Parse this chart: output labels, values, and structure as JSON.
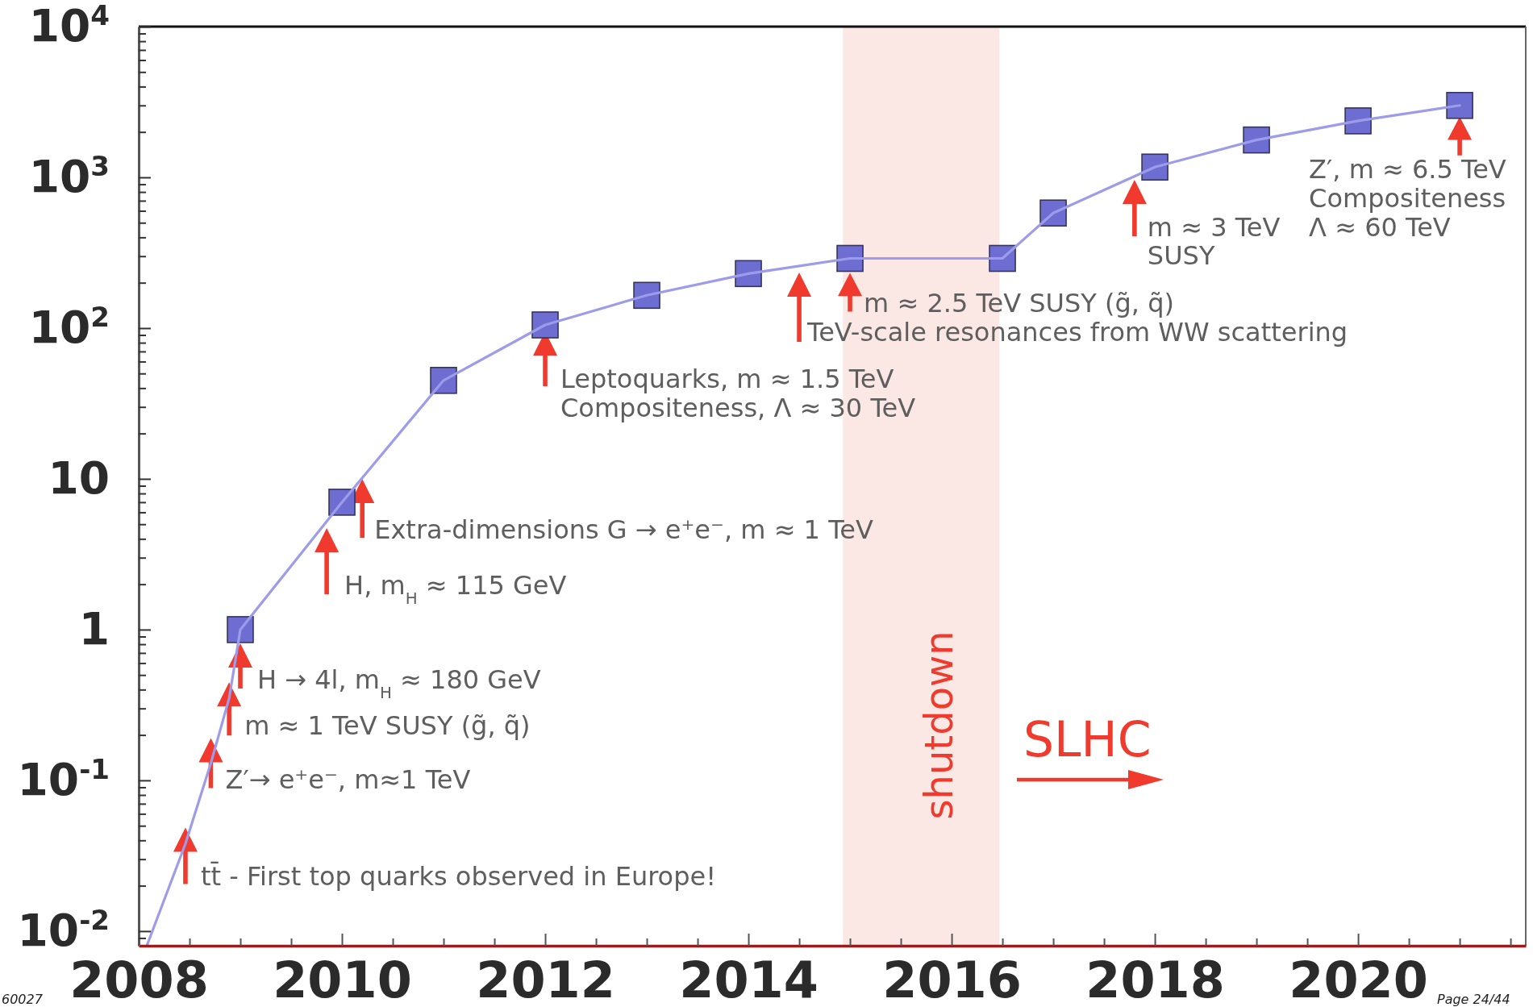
{
  "chart_data": {
    "type": "line",
    "log": true,
    "xlim": [
      2008,
      2021.65
    ],
    "xticks": [
      2008,
      {
        "value": 2008.5,
        "label": null
      },
      {
        "value": 2009,
        "label": null
      },
      {
        "value": 2009.5,
        "label": null
      },
      2010,
      {
        "value": 2010.5,
        "label": null
      },
      {
        "value": 2011,
        "label": null
      },
      {
        "value": 2011.5,
        "label": null
      },
      2012,
      {
        "value": 2012.5,
        "label": null
      },
      {
        "value": 2013,
        "label": null
      },
      {
        "value": 2013.5,
        "label": null
      },
      2014,
      {
        "value": 2014.5,
        "label": null
      },
      {
        "value": 2015,
        "label": null
      },
      {
        "value": 2015.5,
        "label": null
      },
      2016,
      {
        "value": 2016.5,
        "label": null
      },
      {
        "value": 2017,
        "label": null
      },
      {
        "value": 2017.5,
        "label": null
      },
      2018,
      {
        "value": 2018.5,
        "label": null
      },
      {
        "value": 2019,
        "label": null
      },
      {
        "value": 2019.5,
        "label": null
      },
      2020,
      {
        "value": 2020.5,
        "label": null
      },
      {
        "value": 2021,
        "label": null
      },
      {
        "value": 2021.5,
        "label": null
      }
    ],
    "ylim": [
      0.008,
      10000
    ],
    "yticks": [
      {
        "value": 0.009,
        "label": null
      },
      {
        "value": 0.01,
        "label": "10$^{-2}$"
      },
      {
        "value": 0.02,
        "label": null
      },
      {
        "value": 0.03,
        "label": null
      },
      {
        "value": 0.04,
        "label": null
      },
      {
        "value": 0.05,
        "label": null
      },
      {
        "value": 0.06,
        "label": null
      },
      {
        "value": 0.07,
        "label": null
      },
      {
        "value": 0.08,
        "label": null
      },
      {
        "value": 0.09,
        "label": null
      },
      {
        "value": 0.1,
        "label": "10$^{-1}$"
      },
      {
        "value": 0.2,
        "label": null
      },
      {
        "value": 0.3,
        "label": null
      },
      {
        "value": 0.4,
        "label": null
      },
      {
        "value": 0.5,
        "label": null
      },
      {
        "value": 0.6,
        "label": null
      },
      {
        "value": 0.7,
        "label": null
      },
      {
        "value": 0.8,
        "label": null
      },
      {
        "value": 0.9,
        "label": null
      },
      1,
      {
        "value": 2,
        "label": null
      },
      {
        "value": 3,
        "label": null
      },
      {
        "value": 4,
        "label": null
      },
      {
        "value": 5,
        "label": null
      },
      {
        "value": 6,
        "label": null
      },
      {
        "value": 7,
        "label": null
      },
      {
        "value": 8,
        "label": null
      },
      {
        "value": 9,
        "label": null
      },
      10,
      {
        "value": 20,
        "label": null
      },
      {
        "value": 30,
        "label": null
      },
      {
        "value": 40,
        "label": null
      },
      {
        "value": 50,
        "label": null
      },
      {
        "value": 60,
        "label": null
      },
      {
        "value": 70,
        "label": null
      },
      {
        "value": 80,
        "label": null
      },
      {
        "value": 90,
        "label": null
      },
      {
        "value": 100,
        "label": "10$^{2}$"
      },
      {
        "value": 200,
        "label": null
      },
      {
        "value": 300,
        "label": null
      },
      {
        "value": 400,
        "label": null
      },
      {
        "value": 500,
        "label": null
      },
      {
        "value": 600,
        "label": null
      },
      {
        "value": 700,
        "label": null
      },
      {
        "value": 800,
        "label": null
      },
      {
        "value": 900,
        "label": null
      },
      {
        "value": 1000,
        "label": "10$^{3}$"
      },
      {
        "value": 2000,
        "label": null
      },
      {
        "value": 3000,
        "label": null
      },
      {
        "value": 4000,
        "label": null
      },
      {
        "value": 5000,
        "label": null
      },
      {
        "value": 6000,
        "label": null
      },
      {
        "value": 7000,
        "label": null
      },
      {
        "value": 8000,
        "label": null
      },
      {
        "value": 9000,
        "label": null
      },
      {
        "value": 10000,
        "label": "10$^{4}$"
      }
    ],
    "series": [
      {
        "type": "scatter",
        "color": "#6d6dd2",
        "marker": "square",
        "x": [
          2009,
          2010,
          2011,
          2012,
          2013,
          2014,
          2015,
          2016.5,
          2017,
          2018,
          2019,
          2020,
          2021
        ],
        "values": [
          1,
          7,
          45,
          105,
          165,
          230,
          290,
          290,
          580,
          1170,
          1770,
          2370,
          3000
        ]
      },
      {
        "color": "#9c9cea",
        "marker": "none",
        "x": [
          2008.08,
          2008.46,
          2008.71,
          2008.89,
          2009,
          2010,
          2011,
          2012,
          2013,
          2014,
          2015,
          2016.5,
          2017,
          2018,
          2019,
          2020,
          2021
        ],
        "values": [
          0.008,
          0.038,
          0.13,
          0.35,
          1,
          7,
          45,
          105,
          165,
          230,
          290,
          290,
          580,
          1170,
          1770,
          2370,
          3000
        ]
      }
    ],
    "bands": [
      {
        "axis": "x",
        "from": 2014.93,
        "to": 2016.47,
        "label": "shutdown",
        "color": "#fbe8e4"
      }
    ],
    "annotations": [
      {
        "text": "tt̄ - First top quarks observed in Europe!",
        "x": 2008.46,
        "y": 0.038
      },
      {
        "text": "Z′→ e⁺e⁻, m≈1 TeV",
        "x": 2008.71,
        "y": 0.13
      },
      {
        "text": "m ≈ 1 TeV SUSY (g̃, q̃)",
        "x": 2008.89,
        "y": 0.35
      },
      {
        "text": "H → 4l, m$_{H}$ ≈ 180 GeV",
        "x": 2009,
        "y": 1
      },
      {
        "text": "H, m$_{H}$ ≈ 115 GeV",
        "x": 2009.85,
        "y": 5.2
      },
      {
        "text": "Extra-dimensions G → e⁺e⁻, m ≈ 1 TeV",
        "x": 2010.2,
        "y": 10
      },
      {
        "text": "Leptoquarks, m ≈ 1.5 TeV\nCompositeness, Λ ≈ 30 TeV",
        "x": 2012,
        "y": 105
      },
      {
        "text": "TeV-scale resonances from WW scattering",
        "x": 2014.5,
        "y": 258
      },
      {
        "text": "m ≈ 2.5 TeV SUSY (g̃, q̃)",
        "x": 2015,
        "y": 290
      },
      {
        "text": "m ≈ 3 TeV\nSUSY",
        "x": 2017.8,
        "y": 1000
      },
      {
        "text": "Z′, m ≈ 6.5 TeV\nCompositeness\nΛ ≈ 60 TeV",
        "x": 2021,
        "y": 3000
      },
      "SLHC",
      "60027",
      "Page 24/44"
    ]
  }
}
